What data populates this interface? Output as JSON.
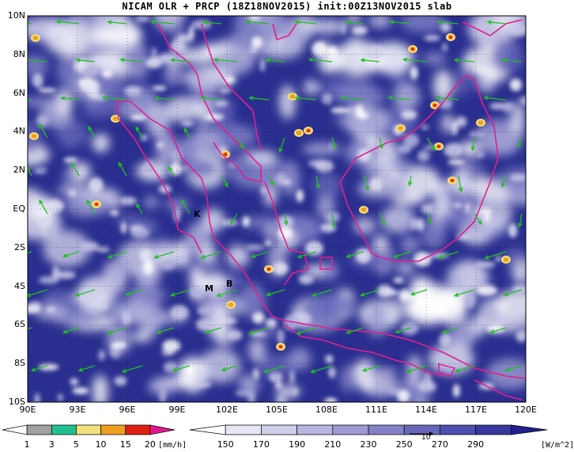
{
  "title": "NICAM OLR + PRCP (18Z18NOV2015) init:00Z13NOV2015 slab",
  "y_ticks": [
    "10N",
    "8N",
    "6N",
    "4N",
    "2N",
    "EQ",
    "2S",
    "4S",
    "6S",
    "8S",
    "10S"
  ],
  "x_ticks": [
    "90E",
    "93E",
    "96E",
    "99E",
    "102E",
    "105E",
    "108E",
    "111E",
    "114E",
    "117E",
    "120E"
  ],
  "city_labels": [
    {
      "id": "K",
      "text": "K"
    },
    {
      "id": "M",
      "text": "M"
    },
    {
      "id": "B",
      "text": "B"
    }
  ],
  "precip_legend": {
    "labels": [
      "1",
      "3",
      "5",
      "10",
      "15",
      "20"
    ],
    "unit": "[mm/h]",
    "colors": [
      "#ffffff",
      "#a0a0a0",
      "#20c090",
      "#f0e080",
      "#f0a020",
      "#e02010",
      "#e01890"
    ]
  },
  "olr_legend": {
    "labels": [
      "150",
      "170",
      "190",
      "210",
      "230",
      "250",
      "270",
      "290"
    ],
    "unit": "[W/m^2]",
    "colors": [
      "#ffffff",
      "#e6e6f4",
      "#cfcfea",
      "#b6b6df",
      "#9c9cd2",
      "#8282c6",
      "#6868ba",
      "#4e4eae",
      "#3838a0",
      "#202090"
    ]
  },
  "vector_ref_label": "10",
  "colors": {
    "ocean_olr": "#2a2f8f",
    "coast": "#e0208f",
    "wind": "#20c020"
  }
}
